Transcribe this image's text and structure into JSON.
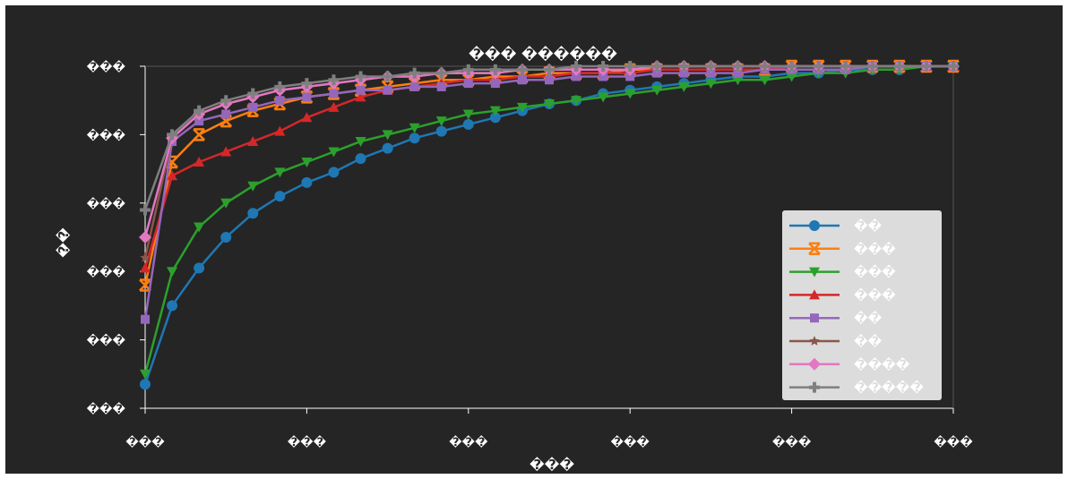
{
  "chart_data": {
    "type": "line",
    "title": "��� ������",
    "xlabel": "���",
    "ylabel": "��",
    "x_tick_labels": [
      "���",
      "���",
      "���",
      "���",
      "���",
      "���"
    ],
    "y_tick_labels": [
      "���",
      "���",
      "���",
      "���",
      "���",
      "���"
    ],
    "xlim": [
      0,
      30
    ],
    "ylim": [
      0,
      1
    ],
    "grid": false,
    "legend_position": "lower-right",
    "x": [
      0,
      1,
      2,
      3,
      4,
      5,
      6,
      7,
      8,
      9,
      10,
      11,
      12,
      13,
      14,
      15,
      16,
      17,
      18,
      19,
      20,
      21,
      22,
      23,
      24,
      25,
      26,
      27,
      28,
      29,
      30
    ],
    "series": [
      {
        "name": "��",
        "color": "#1f77b4",
        "marker": "circle",
        "values": [
          0.07,
          0.3,
          0.41,
          0.5,
          0.57,
          0.62,
          0.66,
          0.69,
          0.73,
          0.76,
          0.79,
          0.81,
          0.83,
          0.85,
          0.87,
          0.89,
          0.9,
          0.92,
          0.93,
          0.94,
          0.95,
          0.96,
          0.97,
          0.97,
          0.98,
          0.98,
          0.99,
          0.99,
          0.99,
          1.0,
          1.0
        ]
      },
      {
        "name": "���",
        "color": "#ff7f0e",
        "marker": "x",
        "values": [
          0.36,
          0.72,
          0.8,
          0.84,
          0.87,
          0.89,
          0.91,
          0.92,
          0.93,
          0.94,
          0.95,
          0.96,
          0.96,
          0.97,
          0.97,
          0.98,
          0.98,
          0.98,
          0.99,
          0.99,
          0.99,
          0.99,
          0.99,
          0.99,
          1.0,
          1.0,
          1.0,
          1.0,
          1.0,
          1.0,
          1.0
        ]
      },
      {
        "name": "���",
        "color": "#2ca02c",
        "marker": "triangle-down",
        "values": [
          0.1,
          0.4,
          0.53,
          0.6,
          0.65,
          0.69,
          0.72,
          0.75,
          0.78,
          0.8,
          0.82,
          0.84,
          0.86,
          0.87,
          0.88,
          0.89,
          0.9,
          0.91,
          0.92,
          0.93,
          0.94,
          0.95,
          0.96,
          0.96,
          0.97,
          0.98,
          0.98,
          0.99,
          0.99,
          1.0,
          1.0
        ]
      },
      {
        "name": "���",
        "color": "#d62728",
        "marker": "triangle-up",
        "values": [
          0.41,
          0.68,
          0.72,
          0.75,
          0.78,
          0.81,
          0.85,
          0.88,
          0.91,
          0.93,
          0.94,
          0.95,
          0.96,
          0.96,
          0.97,
          0.97,
          0.98,
          0.98,
          0.98,
          0.99,
          0.99,
          0.99,
          0.99,
          0.99,
          1.0,
          1.0,
          1.0,
          1.0,
          1.0,
          1.0,
          1.0
        ]
      },
      {
        "name": "��",
        "color": "#9467bd",
        "marker": "square",
        "values": [
          0.26,
          0.78,
          0.84,
          0.86,
          0.88,
          0.9,
          0.91,
          0.92,
          0.93,
          0.93,
          0.94,
          0.94,
          0.95,
          0.95,
          0.96,
          0.96,
          0.97,
          0.97,
          0.97,
          0.98,
          0.98,
          0.98,
          0.98,
          0.99,
          0.99,
          0.99,
          0.99,
          1.0,
          1.0,
          1.0,
          1.0
        ]
      },
      {
        "name": "��",
        "color": "#8c564b",
        "marker": "star",
        "values": [
          0.44,
          0.79,
          0.86,
          0.89,
          0.91,
          0.93,
          0.94,
          0.95,
          0.96,
          0.97,
          0.97,
          0.98,
          0.98,
          0.98,
          0.99,
          0.99,
          0.99,
          0.99,
          0.99,
          1.0,
          1.0,
          1.0,
          1.0,
          1.0,
          1.0,
          1.0,
          1.0,
          1.0,
          1.0,
          1.0,
          1.0
        ]
      },
      {
        "name": "����",
        "color": "#e377c2",
        "marker": "diamond",
        "values": [
          0.5,
          0.79,
          0.86,
          0.89,
          0.91,
          0.93,
          0.94,
          0.95,
          0.96,
          0.97,
          0.97,
          0.98,
          0.98,
          0.98,
          0.99,
          0.99,
          0.99,
          0.99,
          0.99,
          1.0,
          1.0,
          1.0,
          1.0,
          1.0,
          1.0,
          1.0,
          1.0,
          1.0,
          1.0,
          1.0,
          1.0
        ]
      },
      {
        "name": "�����",
        "color": "#7f7f7f",
        "marker": "plus",
        "values": [
          0.58,
          0.8,
          0.87,
          0.9,
          0.92,
          0.94,
          0.95,
          0.96,
          0.97,
          0.97,
          0.98,
          0.98,
          0.99,
          0.99,
          0.99,
          0.99,
          1.0,
          1.0,
          1.0,
          1.0,
          1.0,
          1.0,
          1.0,
          1.0,
          1.0,
          1.0,
          1.0,
          1.0,
          1.0,
          1.0,
          1.0
        ]
      }
    ]
  },
  "colors": {
    "background": "#252525",
    "text": "#ffffff",
    "axis": "#ffffff",
    "legend_bg": "#dcdcdc"
  }
}
